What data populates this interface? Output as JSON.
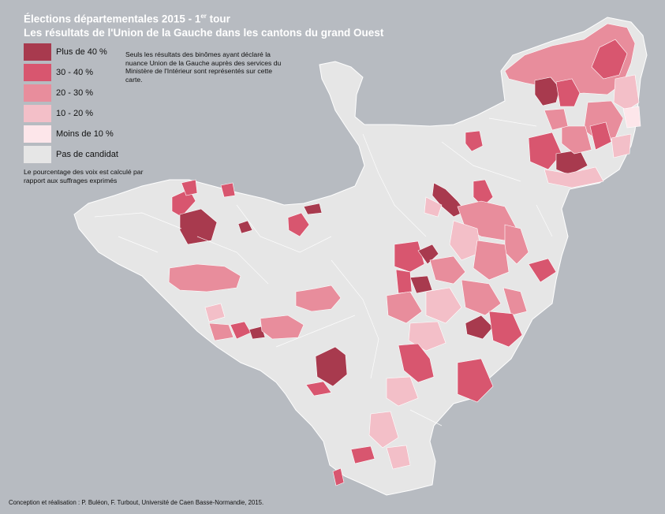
{
  "title": {
    "line1_main": "Élections départementales 2015 - 1",
    "line1_sup": "er",
    "line1_end": " tour",
    "line2": "Les résultats de l'Union de la Gauche dans les cantons du grand Ouest"
  },
  "legend": [
    {
      "label": "Plus de 40 %",
      "color": "#a83a4e"
    },
    {
      "label": "30 - 40 %",
      "color": "#d8566f"
    },
    {
      "label": "20 - 30 %",
      "color": "#e88d9c"
    },
    {
      "label": "10 - 20 %",
      "color": "#f3bfc8"
    },
    {
      "label": "Moins de 10 %",
      "color": "#fde6ea"
    },
    {
      "label": "Pas de candidat",
      "color": "#e6e6e6"
    }
  ],
  "note": "Seuls les résultats des binômes ayant déclaré la nuance Union de la Gauche auprès des services du Ministère de l'Intérieur sont représentés sur cette carte.",
  "note2": "Le pourcentage des voix est calculé par rapport aux suffrages exprimés",
  "credit": "Conception et réalisation : P. Buléon, F. Turbout, Université de Caen Basse-Normandie, 2015.",
  "colors": {
    "sea": "#b7bbc1",
    "land": "#e6e6e6",
    "border": "#ffffff"
  }
}
